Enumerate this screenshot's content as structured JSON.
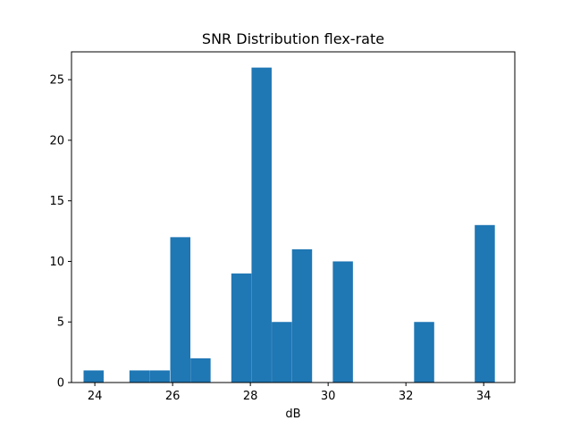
{
  "chart_data": {
    "type": "bar",
    "title": "SNR Distribution flex-rate",
    "xlabel": "dB",
    "ylabel": "",
    "xlim": [
      23.4,
      34.8
    ],
    "ylim": [
      0,
      27.3
    ],
    "xticks": [
      24,
      26,
      28,
      30,
      32,
      34
    ],
    "yticks": [
      0,
      5,
      10,
      15,
      20,
      25
    ],
    "bin_width": 0.517,
    "bins": [
      {
        "x0": 23.71,
        "count": 1
      },
      {
        "x0": 24.89,
        "count": 1
      },
      {
        "x0": 25.41,
        "count": 1
      },
      {
        "x0": 25.94,
        "count": 12
      },
      {
        "x0": 26.46,
        "count": 2
      },
      {
        "x0": 27.51,
        "count": 9
      },
      {
        "x0": 28.03,
        "count": 26
      },
      {
        "x0": 28.55,
        "count": 5
      },
      {
        "x0": 29.07,
        "count": 11
      },
      {
        "x0": 30.12,
        "count": 10
      },
      {
        "x0": 32.21,
        "count": 5
      },
      {
        "x0": 33.77,
        "count": 13
      }
    ],
    "bar_color": "#1f77b4",
    "grid": false,
    "legend": "none"
  }
}
